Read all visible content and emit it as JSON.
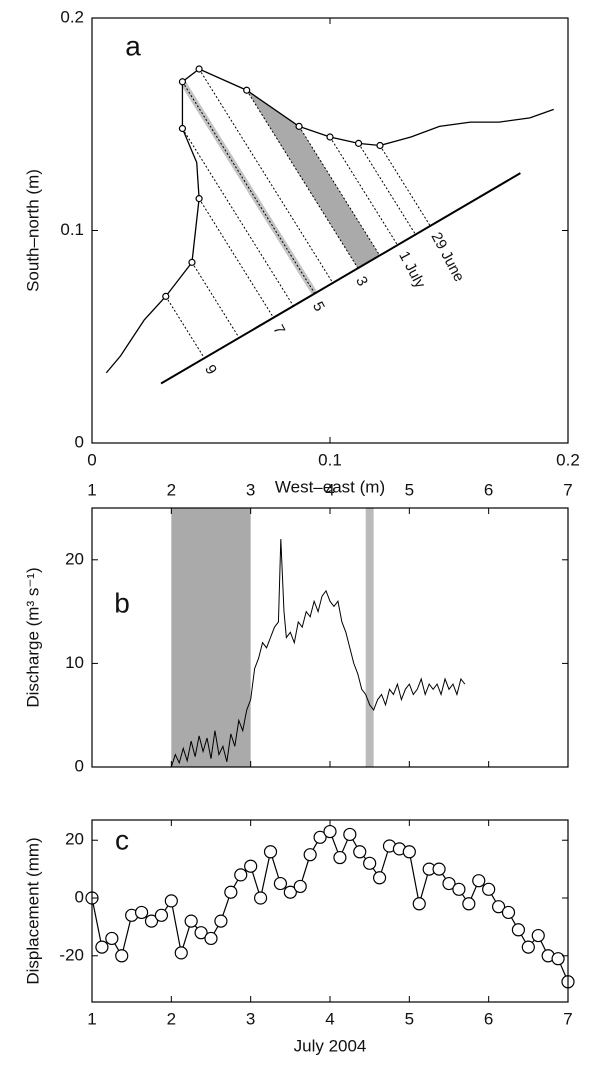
{
  "chart_data": [
    {
      "type": "line",
      "label": "a",
      "xlabel": "West–east (m)",
      "ylabel": "South–north (m)",
      "xlim": [
        0,
        0.2
      ],
      "ylim": [
        0,
        0.2
      ],
      "xticks": [
        0,
        0.1,
        0.2
      ],
      "yticks": [
        0,
        0.1,
        0.2
      ],
      "xtick_side": "bottom",
      "outline": {
        "x": [
          0.006,
          0.012,
          0.022,
          0.031,
          0.042,
          0.045,
          0.044,
          0.038,
          0.038,
          0.045,
          0.065,
          0.087,
          0.1,
          0.112,
          0.121,
          0.134,
          0.146,
          0.159,
          0.171,
          0.184,
          0.194
        ],
        "y": [
          0.033,
          0.041,
          0.058,
          0.069,
          0.085,
          0.115,
          0.132,
          0.148,
          0.17,
          0.176,
          0.166,
          0.149,
          0.144,
          0.141,
          0.14,
          0.144,
          0.149,
          0.151,
          0.151,
          0.153,
          0.157
        ]
      },
      "points": {
        "x": [
          0.031,
          0.042,
          0.045,
          0.038,
          0.038,
          0.045,
          0.065,
          0.087,
          0.1,
          0.112,
          0.121
        ],
        "y": [
          0.069,
          0.085,
          0.115,
          0.148,
          0.17,
          0.176,
          0.166,
          0.149,
          0.144,
          0.141,
          0.14
        ]
      },
      "baseline": {
        "x": [
          0.029,
          0.18
        ],
        "y": [
          0.028,
          0.127
        ]
      },
      "date_labels": [
        "9",
        "7",
        "5",
        "3",
        "1 July",
        "29 June"
      ]
    },
    {
      "type": "line",
      "label": "b",
      "ylabel": "Discharge (m³ s⁻¹)",
      "xlim": [
        1,
        7
      ],
      "ylim": [
        0,
        25
      ],
      "xticks": [
        1,
        2,
        3,
        4,
        5,
        6,
        7
      ],
      "yticks": [
        0,
        10,
        20
      ],
      "xtick_side": "top",
      "shaded_spans": [
        {
          "from": 2,
          "to": 3,
          "color": "#aaaaaa"
        },
        {
          "from": 4.45,
          "to": 4.55,
          "color": "#bbbbbb"
        }
      ],
      "x": [
        2.0,
        2.05,
        2.1,
        2.15,
        2.2,
        2.25,
        2.3,
        2.35,
        2.4,
        2.45,
        2.5,
        2.55,
        2.6,
        2.65,
        2.7,
        2.75,
        2.8,
        2.85,
        2.9,
        2.95,
        3.0,
        3.05,
        3.1,
        3.15,
        3.2,
        3.25,
        3.3,
        3.35,
        3.38,
        3.42,
        3.45,
        3.5,
        3.55,
        3.6,
        3.65,
        3.7,
        3.75,
        3.8,
        3.85,
        3.9,
        3.95,
        4.0,
        4.05,
        4.1,
        4.15,
        4.2,
        4.25,
        4.3,
        4.35,
        4.4,
        4.45,
        4.5,
        4.55,
        4.6,
        4.65,
        4.7,
        4.75,
        4.8,
        4.85,
        4.9,
        4.95,
        5.0,
        5.05,
        5.1,
        5.15,
        5.2,
        5.25,
        5.3,
        5.35,
        5.4,
        5.45,
        5.5,
        5.55,
        5.6,
        5.65,
        5.7
      ],
      "values": [
        0,
        1.2,
        0.4,
        1.8,
        0.6,
        2.5,
        1.0,
        3.0,
        1.5,
        2.8,
        0.8,
        3.5,
        1.2,
        2.0,
        0.5,
        3.2,
        2.0,
        4.5,
        3.5,
        5.5,
        6.5,
        9.5,
        10.5,
        12,
        11.5,
        12.5,
        13.5,
        14,
        22,
        15,
        12.5,
        13,
        12,
        14,
        13.5,
        15,
        14.5,
        16,
        15,
        16.5,
        17,
        16,
        15.5,
        16,
        14,
        13,
        11.5,
        10,
        9,
        7.5,
        7,
        6,
        5.5,
        6.5,
        7,
        6,
        7.5,
        7,
        8,
        6.5,
        7.5,
        8,
        7,
        7.5,
        8.5,
        7,
        8,
        7.5,
        8,
        7,
        8.5,
        7.5,
        8,
        7,
        8.5,
        8
      ],
      "color": "#000000"
    },
    {
      "type": "line",
      "label": "c",
      "xlabel": "July 2004",
      "ylabel": "Displacement (mm)",
      "xlim": [
        1,
        7
      ],
      "ylim": [
        -36,
        27
      ],
      "xticks": [
        1,
        2,
        3,
        4,
        5,
        6,
        7
      ],
      "yticks": [
        -20,
        0,
        20
      ],
      "xtick_side": "bottom",
      "markers": true,
      "x": [
        1,
        1.125,
        1.25,
        1.375,
        1.5,
        1.625,
        1.75,
        1.875,
        2,
        2.125,
        2.25,
        2.375,
        2.5,
        2.625,
        2.75,
        2.875,
        3,
        3.125,
        3.25,
        3.375,
        3.5,
        3.625,
        3.75,
        3.875,
        4,
        4.125,
        4.25,
        4.375,
        4.5,
        4.625,
        4.75,
        4.875,
        5,
        5.125,
        5.25,
        5.375,
        5.5,
        5.625,
        5.75,
        5.875,
        6,
        6.125,
        6.25,
        6.375,
        6.5,
        6.625,
        6.75,
        6.875,
        7
      ],
      "values": [
        0,
        -17,
        -14,
        -20,
        -6,
        -5,
        -8,
        -6,
        -1,
        -19,
        -8,
        -12,
        -14,
        -8,
        2,
        8,
        11,
        0,
        16,
        5,
        2,
        4,
        15,
        21,
        23,
        14,
        22,
        16,
        12,
        7,
        18,
        17,
        16,
        -2,
        10,
        10,
        5,
        3,
        -2,
        6,
        3,
        -3,
        -5,
        -11,
        -17,
        -13,
        -20,
        -21,
        -29
      ],
      "color": "#000000"
    }
  ]
}
